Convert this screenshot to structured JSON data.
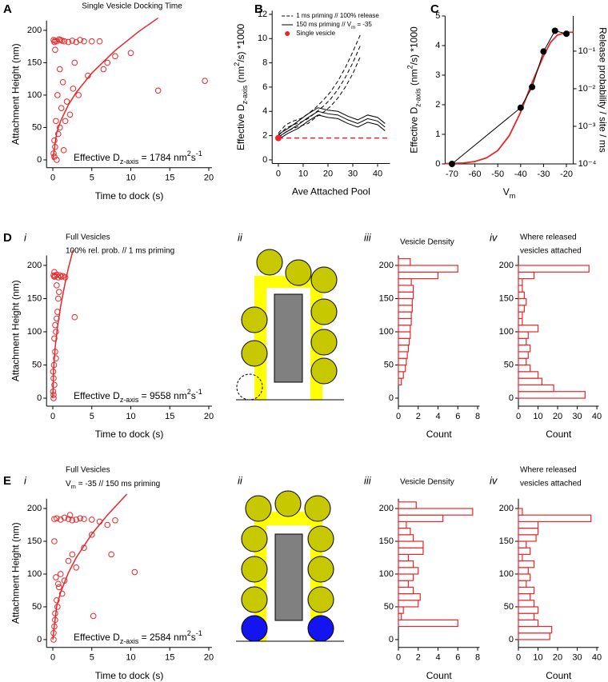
{
  "chart_data": [
    {
      "type": "scatter",
      "panel": "A",
      "title": [
        "Single Vesicle Docking Time"
      ],
      "xlabel": "Time to dock (s)",
      "ylabel": "Attachment Height (nm)",
      "xlim": [
        -0.8,
        20.4
      ],
      "ylim": [
        -12,
        215
      ],
      "xticks": [
        0,
        5,
        10,
        15,
        20
      ],
      "yticks": [
        0,
        50,
        100,
        150,
        200
      ],
      "color": "#e8262a",
      "x": [
        0.1,
        0.2,
        0.3,
        0.5,
        0.8,
        1,
        1.2,
        1.5,
        2,
        2.5,
        3,
        3.5,
        4,
        5,
        6,
        7,
        8,
        10,
        13.5,
        19.5,
        0.2,
        0.4,
        0.6,
        0.9,
        1.3,
        1.8,
        2.2,
        2.8,
        3.3,
        4.5,
        0.1,
        0.3,
        0.7,
        1.1,
        1.6,
        0.2,
        0.5,
        0.9,
        2.6,
        6.5,
        0.3,
        1.4
      ],
      "values": [
        185,
        182,
        184,
        183,
        186,
        185,
        184,
        183,
        182,
        184,
        182,
        185,
        183,
        183,
        183,
        150,
        160,
        165,
        107,
        122,
        30,
        60,
        100,
        140,
        120,
        90,
        70,
        150,
        100,
        130,
        10,
        20,
        40,
        80,
        60,
        5,
        0,
        50,
        110,
        140,
        170,
        15
      ],
      "fit": {
        "x": [
          0,
          0.5,
          1,
          2,
          3,
          5,
          8,
          11,
          13.5
        ],
        "values": [
          0,
          42,
          60,
          85,
          104,
          134,
          169,
          198,
          219
        ]
      },
      "annotation": [
        {
          "t": "Effective D"
        },
        {
          "t": "z-axis",
          "s": "sub"
        },
        {
          "t": " = 1784 nm"
        },
        {
          "t": "2",
          "s": "sup"
        },
        {
          "t": "s"
        },
        {
          "t": "-1",
          "s": "sup"
        }
      ]
    },
    {
      "type": "line",
      "panel": "B",
      "xlabel": "Ave Attached Pool",
      "ylabel": [
        {
          "t": "Effective D"
        },
        {
          "t": "z-axis",
          "s": "sub"
        },
        {
          "t": " (nm"
        },
        {
          "t": "2",
          "s": "sup"
        },
        {
          "t": "/s) *1000"
        }
      ],
      "xlim": [
        -2.5,
        45
      ],
      "ylim": [
        -0.3,
        12.3
      ],
      "xticks": [
        0,
        10,
        20,
        30,
        40
      ],
      "yticks": [
        0,
        2,
        4,
        6,
        8,
        10,
        12
      ],
      "series": [
        {
          "name": "1 ms priming // 100% release",
          "color": "#000000",
          "dashed": true,
          "x": [
            0,
            3,
            6,
            9,
            12,
            15,
            18,
            21,
            24,
            27,
            30,
            33
          ],
          "values": [
            2.0,
            2.6,
            2.9,
            3.1,
            3.4,
            3.9,
            4.4,
            5.0,
            5.8,
            6.8,
            8.0,
            9.4
          ],
          "upper": [
            2.2,
            2.9,
            3.2,
            3.4,
            3.8,
            4.3,
            4.9,
            5.6,
            6.5,
            7.6,
            8.9,
            10.3
          ],
          "lower": [
            1.8,
            2.3,
            2.6,
            2.8,
            3.0,
            3.5,
            3.9,
            4.4,
            5.1,
            6.0,
            7.1,
            8.5
          ]
        },
        {
          "name": [
            {
              "t": "150 ms priming // V"
            },
            {
              "t": "m",
              "s": "sub"
            },
            {
              "t": " = -35"
            }
          ],
          "color": "#000000",
          "dashed": false,
          "x": [
            0,
            4,
            8,
            12,
            16,
            20,
            24,
            28,
            32,
            36,
            40,
            43
          ],
          "values": [
            1.9,
            2.4,
            2.9,
            3.5,
            4.0,
            3.8,
            3.7,
            3.3,
            3.0,
            3.4,
            3.2,
            2.7
          ],
          "upper": [
            2.1,
            2.6,
            3.2,
            3.8,
            4.3,
            4.1,
            4.0,
            3.6,
            3.3,
            3.7,
            3.5,
            3.0
          ],
          "lower": [
            1.7,
            2.2,
            2.6,
            3.2,
            3.7,
            3.5,
            3.4,
            3.0,
            2.7,
            3.1,
            2.9,
            2.4
          ]
        }
      ],
      "single": {
        "name": "Single vesicle",
        "color": "#e8262a",
        "x": 0,
        "value": 1.8
      }
    },
    {
      "type": "line",
      "panel": "C",
      "xlabel": [
        {
          "t": "V"
        },
        {
          "t": "m",
          "s": "sub"
        }
      ],
      "ylabel": [
        {
          "t": "Effective D"
        },
        {
          "t": "z-axis",
          "s": "sub"
        },
        {
          "t": " (nm"
        },
        {
          "t": "2",
          "s": "sup"
        },
        {
          "t": "/s) *1000"
        }
      ],
      "y2label": "Release probability / site / ms",
      "xlim": [
        -73,
        -17
      ],
      "ylim": [
        0,
        5
      ],
      "xticks": [
        -70,
        -60,
        -50,
        -40,
        -30,
        -20
      ],
      "yticks": [
        0,
        1,
        2,
        3,
        4,
        5
      ],
      "y2lim": [
        0.0001,
        0.86
      ],
      "y2scale": "log",
      "y2ticks": [
        {
          "value": 0.0001,
          "label": "10⁻⁴"
        },
        {
          "value": 0.001,
          "label": "10⁻³"
        },
        {
          "value": 0.01,
          "label": "10⁻²"
        },
        {
          "value": 0.1,
          "label": "10⁻¹"
        }
      ],
      "series": [
        {
          "color": "#000000",
          "markers": true,
          "x": [
            -70,
            -40,
            -35,
            -30,
            -25,
            -20
          ],
          "values": [
            0,
            1.9,
            2.6,
            3.8,
            4.5,
            4.4
          ]
        }
      ],
      "fit": {
        "color": "#e8262a",
        "x": [
          -73,
          -65,
          -60,
          -55,
          -50,
          -45,
          -40,
          -35,
          -30,
          -27,
          -24,
          -20,
          -17
        ],
        "values": [
          0.01,
          0.03,
          0.08,
          0.2,
          0.45,
          0.95,
          1.75,
          2.75,
          3.65,
          4.1,
          4.35,
          4.45,
          4.45
        ]
      }
    },
    {
      "type": "scatter",
      "panel": "D",
      "sub": "i",
      "title": [
        "Full Vesicles",
        "100% rel. prob. // 1 ms priming"
      ],
      "xlabel": "Time to dock (s)",
      "ylabel": "Attachment Height (nm)",
      "xlim": [
        -0.8,
        20.4
      ],
      "ylim": [
        -12,
        215
      ],
      "xticks": [
        0,
        5,
        10,
        15,
        20
      ],
      "yticks": [
        0,
        50,
        100,
        150,
        200
      ],
      "color": "#e8262a",
      "x": [
        0.1,
        0.2,
        0.3,
        0.5,
        0.7,
        0.9,
        1.1,
        1.3,
        1.6,
        0.05,
        0.1,
        0.15,
        0.2,
        0.3,
        0.4,
        0.5,
        0.6,
        0.7,
        0.8,
        0.1,
        0.05,
        0.2,
        0.3,
        0.4,
        0.5,
        2.8,
        0.1,
        0.2
      ],
      "values": [
        185,
        183,
        184,
        186,
        182,
        185,
        183,
        184,
        182,
        10,
        30,
        50,
        20,
        70,
        100,
        120,
        130,
        150,
        160,
        0,
        40,
        90,
        110,
        60,
        170,
        122,
        5,
        190
      ],
      "fit": {
        "x": [
          0,
          0.1,
          0.3,
          0.6,
          1,
          1.5,
          2,
          2.6
        ],
        "values": [
          0,
          44,
          76,
          107,
          138,
          169,
          196,
          223
        ]
      },
      "annotation": [
        {
          "t": "Effective D"
        },
        {
          "t": "z-axis",
          "s": "sub"
        },
        {
          "t": " = 9558 nm"
        },
        {
          "t": "2",
          "s": "sup"
        },
        {
          "t": "s"
        },
        {
          "t": "-1",
          "s": "sup"
        }
      ]
    },
    {
      "type": "histogram",
      "sub": "iii",
      "title": [
        "Vesicle Density"
      ],
      "xlabel": "Count",
      "xlim": [
        0,
        8.2
      ],
      "ylim": [
        -12,
        215
      ],
      "xticks": [
        0,
        2,
        4,
        6,
        8
      ],
      "yticks": [
        0,
        50,
        100,
        150,
        200
      ],
      "color": "#e8262a",
      "bins": [
        20,
        30,
        40,
        50,
        60,
        70,
        80,
        90,
        100,
        110,
        120,
        130,
        140,
        150,
        160,
        170,
        180,
        190,
        200,
        210
      ],
      "values": [
        0.3,
        0.5,
        0.7,
        0.8,
        0.9,
        1.0,
        1.1,
        1.2,
        1.2,
        1.3,
        1.3,
        1.4,
        1.4,
        1.5,
        1.5,
        1.3,
        4.0,
        6.0,
        1.2
      ]
    },
    {
      "type": "histogram",
      "sub": "iv",
      "title": [
        "Where released",
        "vesicles attached"
      ],
      "xlabel": "Count",
      "xlim": [
        0,
        41
      ],
      "ylim": [
        -12,
        215
      ],
      "xticks": [
        0,
        10,
        20,
        30,
        40
      ],
      "yticks": [
        0,
        50,
        100,
        150,
        200
      ],
      "color": "#e8262a",
      "bins": [
        0,
        10,
        20,
        30,
        40,
        50,
        60,
        70,
        80,
        90,
        100,
        110,
        120,
        130,
        140,
        150,
        160,
        170,
        180,
        190,
        200
      ],
      "values": [
        34,
        18,
        12,
        10,
        6,
        4,
        5,
        6,
        4,
        5,
        10,
        2,
        2,
        3,
        4,
        3,
        2,
        2,
        8,
        36
      ]
    },
    {
      "type": "scatter",
      "panel": "E",
      "sub": "i",
      "title": [
        "Full Vesicles",
        [
          {
            "t": "V"
          },
          {
            "t": "m",
            "s": "sub"
          },
          {
            "t": " = -35 // 150 ms priming"
          }
        ]
      ],
      "xlabel": "Time to dock (s)",
      "ylabel": "Attachment Height (nm)",
      "xlim": [
        -0.8,
        20.4
      ],
      "ylim": [
        -12,
        215
      ],
      "xticks": [
        0,
        5,
        10,
        15,
        20
      ],
      "yticks": [
        0,
        50,
        100,
        150,
        200
      ],
      "color": "#e8262a",
      "x": [
        0.2,
        0.5,
        1,
        1.5,
        2,
        2.5,
        3,
        3.5,
        4,
        5,
        6,
        7,
        8,
        2.2,
        0.1,
        0.2,
        0.3,
        0.5,
        0.8,
        1,
        1.5,
        2,
        2.5,
        3,
        4,
        5,
        10.5,
        0.1,
        0.3,
        0.6,
        1.2,
        0.2,
        0.4,
        0.7,
        5.2,
        7.5
      ],
      "values": [
        184,
        185,
        183,
        186,
        184,
        182,
        183,
        185,
        184,
        183,
        180,
        175,
        182,
        190,
        10,
        20,
        40,
        60,
        80,
        100,
        90,
        120,
        130,
        110,
        140,
        160,
        103,
        0,
        30,
        50,
        70,
        150,
        95,
        85,
        36,
        130
      ],
      "fit": {
        "x": [
          0,
          0.5,
          1,
          2,
          3,
          5,
          7,
          9.5
        ],
        "values": [
          0,
          51,
          72,
          102,
          125,
          161,
          190,
          222
        ]
      },
      "annotation": [
        {
          "t": "Effective D"
        },
        {
          "t": "z-axis",
          "s": "sub"
        },
        {
          "t": " = 2584 nm"
        },
        {
          "t": "2",
          "s": "sup"
        },
        {
          "t": "s"
        },
        {
          "t": "-1",
          "s": "sup"
        }
      ]
    },
    {
      "type": "histogram",
      "sub": "iii",
      "title": [
        "Vesicle Density"
      ],
      "xlabel": "Count",
      "xlim": [
        0,
        8.2
      ],
      "ylim": [
        -12,
        215
      ],
      "xticks": [
        0,
        2,
        4,
        6,
        8
      ],
      "yticks": [
        0,
        50,
        100,
        150,
        200
      ],
      "color": "#e8262a",
      "bins": [
        20,
        30,
        40,
        50,
        60,
        70,
        80,
        90,
        100,
        110,
        120,
        130,
        140,
        150,
        160,
        170,
        180,
        190,
        200,
        210
      ],
      "values": [
        6,
        0.3,
        0.5,
        2,
        2.2,
        1.5,
        1,
        1.5,
        2,
        1.5,
        1,
        2.5,
        2.5,
        1.5,
        1.2,
        0.8,
        4.5,
        7.5,
        1.8
      ]
    },
    {
      "type": "histogram",
      "sub": "iv",
      "title": [
        "Where released",
        "vesicles attached"
      ],
      "xlabel": "Count",
      "xlim": [
        0,
        41
      ],
      "ylim": [
        -12,
        215
      ],
      "xticks": [
        0,
        10,
        20,
        30,
        40
      ],
      "yticks": [
        0,
        50,
        100,
        150,
        200
      ],
      "color": "#e8262a",
      "bins": [
        0,
        10,
        20,
        30,
        40,
        50,
        60,
        70,
        80,
        90,
        100,
        110,
        120,
        130,
        140,
        150,
        160,
        170,
        180,
        190,
        200
      ],
      "values": [
        16,
        17,
        10,
        8,
        10,
        8,
        6,
        8,
        4,
        6,
        5,
        8,
        2,
        6,
        4,
        9,
        10,
        10,
        37,
        2
      ]
    }
  ],
  "diagrams": [
    {
      "label": "ii"
    },
    {
      "label": "ii"
    }
  ]
}
